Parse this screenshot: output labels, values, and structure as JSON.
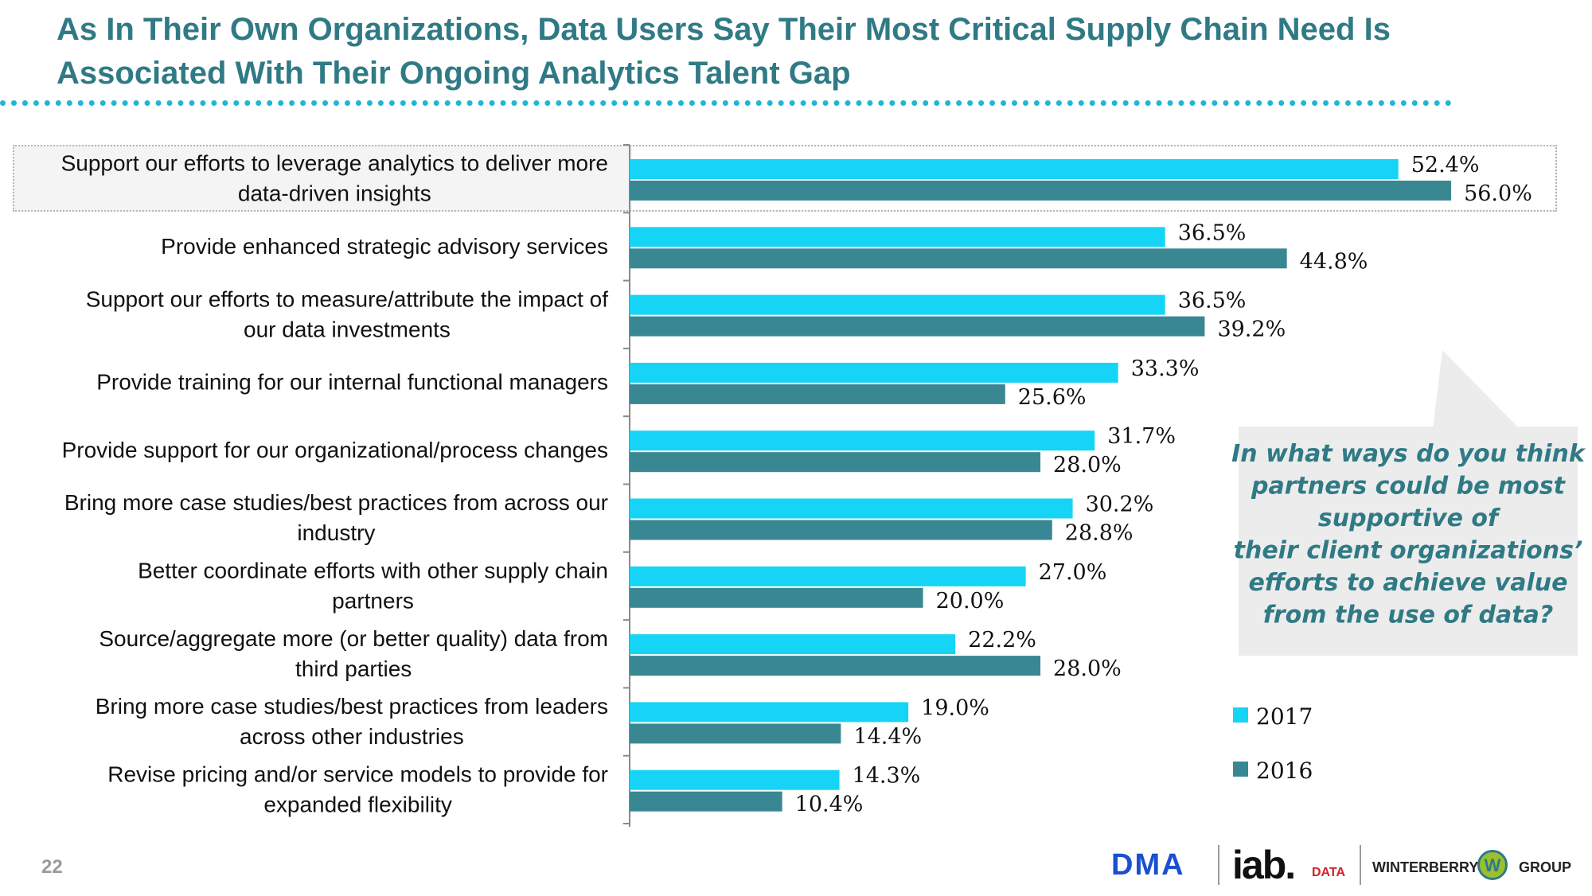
{
  "title": "As In Their Own Organizations, Data Users Say Their Most Critical Supply Chain Need Is Associated With Their Ongoing Analytics Talent Gap",
  "page_number": "22",
  "colors": {
    "series_2017": "#16d4f6",
    "series_2016": "#3a8794",
    "title": "#2f7a85",
    "rule": "#1fb7d6"
  },
  "callout": {
    "lines": [
      "In what ways do you think",
      "partners could be most",
      "supportive of",
      "their client organizations’",
      "efforts to achieve value",
      "from the use of data?"
    ]
  },
  "logos": {
    "dma": "DMA",
    "iab": "iab.",
    "iab_data": "DATA",
    "winterberry": "WINTERBERRY",
    "w": "W",
    "group": "GROUP"
  },
  "chart_data": {
    "type": "bar",
    "orientation": "horizontal",
    "title": "",
    "categories": [
      [
        "Support our efforts to leverage analytics to deliver more",
        "data-driven insights"
      ],
      [
        "Provide enhanced strategic advisory services"
      ],
      [
        "Support our efforts to measure/attribute the impact of",
        "our data investments"
      ],
      [
        "Provide training for our internal functional managers"
      ],
      [
        "Provide support for our organizational/process changes"
      ],
      [
        "Bring more case studies/best practices from across our",
        "industry"
      ],
      [
        "Better coordinate efforts with other supply chain",
        "partners"
      ],
      [
        "Source/aggregate more (or better quality) data from",
        "third parties"
      ],
      [
        "Bring more case studies/best practices from leaders",
        "across other industries"
      ],
      [
        "Revise pricing and/or service models to provide for",
        "expanded flexibility"
      ]
    ],
    "series": [
      {
        "name": "2017",
        "values": [
          52.4,
          36.5,
          36.5,
          33.3,
          31.7,
          30.2,
          27.0,
          22.2,
          19.0,
          14.3
        ],
        "labels": [
          "52.4%",
          "36.5%",
          "36.5%",
          "33.3%",
          "31.7%",
          "30.2%",
          "27.0%",
          "22.2%",
          "19.0%",
          "14.3%"
        ]
      },
      {
        "name": "2016",
        "values": [
          56.0,
          44.8,
          39.2,
          25.6,
          28.0,
          28.8,
          20.0,
          28.0,
          14.4,
          10.4
        ],
        "labels": [
          "56.0%",
          "44.8%",
          "39.2%",
          "25.6%",
          "28.0%",
          "28.8%",
          "20.0%",
          "28.0%",
          "14.4%",
          "10.4%"
        ]
      }
    ],
    "xlim": [
      0,
      60
    ],
    "legend": {
      "position": "bottom-right",
      "entries": [
        "2017",
        "2016"
      ]
    },
    "highlighted_category": 0
  }
}
